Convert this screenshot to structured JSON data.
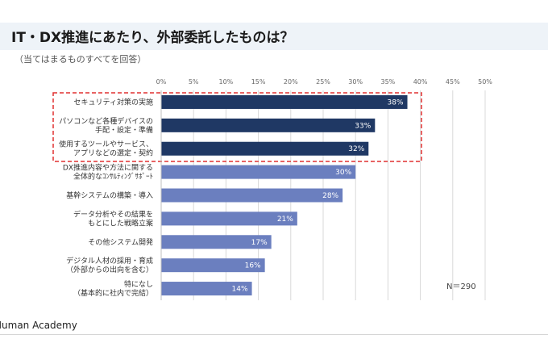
{
  "header": {
    "title": "IT・DX推進にあたり、外部委託したものは？",
    "subtitle": "（当てはまるものすべてを回答）"
  },
  "footer": {
    "brand": "Human Academy",
    "sample_note": "N＝290"
  },
  "colors": {
    "highlight_bar": "#1f3864",
    "normal_bar": "#6b7fbf",
    "highlight_box": "#e03030",
    "grid": "#d9d9d9",
    "title_bar": "#eef3f8"
  },
  "chart_data": {
    "type": "bar",
    "orientation": "horizontal",
    "categories": [
      [
        "セキュリティ対策の実施"
      ],
      [
        "パソコンなど各種デバイスの",
        "手配・設定・準備"
      ],
      [
        "使用するツールやサービス、",
        "アプリなどの選定・契約"
      ],
      [
        "DX推進内容や方法に関する",
        "全体的なｺﾝｻﾙﾃｨﾝｸﾞｻﾎﾟｰﾄ"
      ],
      [
        "基幹システムの構築・導入"
      ],
      [
        "データ分析やその結果を",
        "もとにした戦略立案"
      ],
      [
        "その他システム開発"
      ],
      [
        "デジタル人材の採用・育成",
        "（外部からの出向を含む）"
      ],
      [
        "特になし",
        "（基本的に社内で完結）"
      ]
    ],
    "values": [
      38,
      33,
      32,
      30,
      28,
      21,
      17,
      16,
      14
    ],
    "value_labels": [
      "38%",
      "33%",
      "32%",
      "30%",
      "28%",
      "21%",
      "17%",
      "16%",
      "14%"
    ],
    "highlighted": [
      true,
      true,
      true,
      false,
      false,
      false,
      false,
      false,
      false
    ],
    "xlim": [
      0,
      50
    ],
    "xticks": [
      "0%",
      "5%",
      "10%",
      "15%",
      "20%",
      "25%",
      "30%",
      "35%",
      "40%",
      "45%",
      "50%"
    ],
    "grid": true,
    "legend": "none"
  }
}
